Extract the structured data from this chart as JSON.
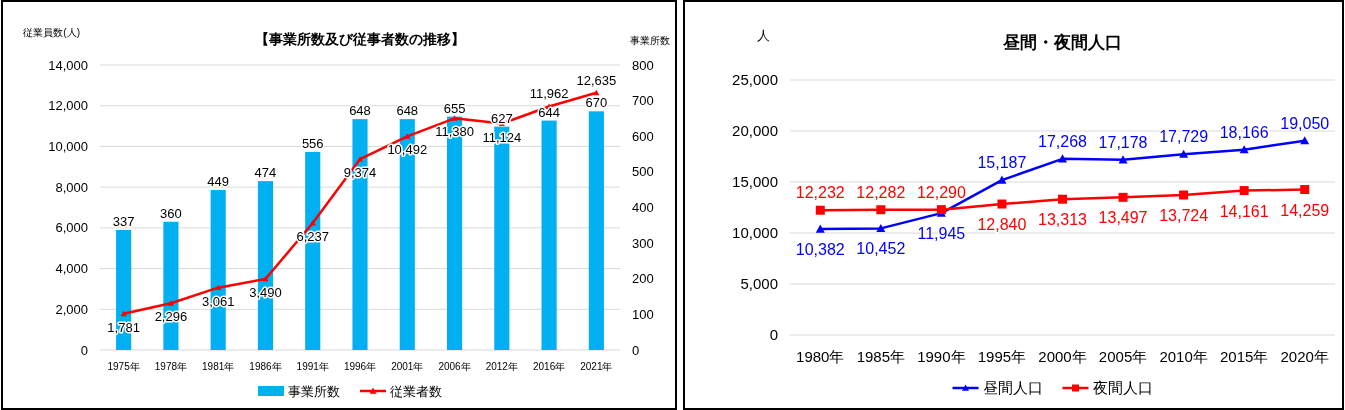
{
  "chart_data": [
    {
      "type": "bar",
      "title": "【事業所数及び従事者数の推移】",
      "ylabel": "従業員数(人)",
      "y2label": "事業所数",
      "categories": [
        "1975年",
        "1978年",
        "1981年",
        "1986年",
        "1991年",
        "1996年",
        "2001年",
        "2006年",
        "2012年",
        "2016年",
        "2021年"
      ],
      "series": [
        {
          "name": "事業所数",
          "type": "bar",
          "axis": "y2",
          "color": "#00b0f0",
          "values": [
            337,
            360,
            449,
            474,
            556,
            648,
            648,
            655,
            627,
            644,
            670
          ],
          "value_labels": [
            "337",
            "360",
            "449",
            "474",
            "556",
            "648",
            "648",
            "655",
            "627",
            "644",
            "670"
          ]
        },
        {
          "name": "従業者数",
          "type": "line",
          "axis": "y",
          "color": "#ff0000",
          "marker": "triangle",
          "values": [
            1781,
            2296,
            3061,
            3490,
            6237,
            9374,
            10492,
            11380,
            11124,
            11962,
            12635
          ],
          "value_labels": [
            "1,781",
            "2,296",
            "3,061",
            "3,490",
            "6,237",
            "9,374",
            "10,492",
            "11,380",
            "11,124",
            "11,962",
            "12,635"
          ]
        }
      ],
      "ylim": [
        0,
        14000
      ],
      "yticks": [
        0,
        {
          "value": 2000,
          "label": "2,000"
        },
        {
          "value": 4000,
          "label": "4,000"
        },
        {
          "value": 6000,
          "label": "6,000"
        },
        {
          "value": 8000,
          "label": "8,000"
        },
        {
          "value": 10000,
          "label": "10,000"
        },
        {
          "value": 12000,
          "label": "12,000"
        },
        {
          "value": 14000,
          "label": "14,000"
        }
      ],
      "y2lim": [
        0,
        800
      ],
      "y2ticks": [
        0,
        100,
        200,
        300,
        400,
        500,
        600,
        700,
        800
      ],
      "grid": "y",
      "legend": "bottom"
    },
    {
      "type": "line",
      "title": "昼間・夜間人口",
      "ylabel": "人",
      "categories": [
        "1980年",
        "1985年",
        "1990年",
        "1995年",
        "2000年",
        "2005年",
        "2010年",
        "2015年",
        "2020年"
      ],
      "series": [
        {
          "name": "昼間人口",
          "color": "#0000ff",
          "marker": "triangle",
          "values": [
            10382,
            10452,
            11945,
            15187,
            17268,
            17178,
            17729,
            18166,
            19050
          ],
          "value_labels": [
            "10,382",
            "10,452",
            "11,945",
            "15,187",
            "17,268",
            "17,178",
            "17,729",
            "18,166",
            "19,050"
          ]
        },
        {
          "name": "夜間人口",
          "color": "#ff0000",
          "marker": "square",
          "values": [
            12232,
            12282,
            12290,
            12840,
            13313,
            13497,
            13724,
            14161,
            14259
          ],
          "value_labels": [
            "12,232",
            "12,282",
            "12,290",
            "12,840",
            "13,313",
            "13,497",
            "13,724",
            "14,161",
            "14,259"
          ]
        }
      ],
      "ylim": [
        0,
        25000
      ],
      "yticks": [
        0,
        {
          "value": 5000,
          "label": "5,000"
        },
        {
          "value": 10000,
          "label": "10,000"
        },
        {
          "value": 15000,
          "label": "15,000"
        },
        {
          "value": 20000,
          "label": "20,000"
        },
        {
          "value": 25000,
          "label": "25,000"
        }
      ],
      "grid": "y",
      "legend": "bottom"
    }
  ]
}
